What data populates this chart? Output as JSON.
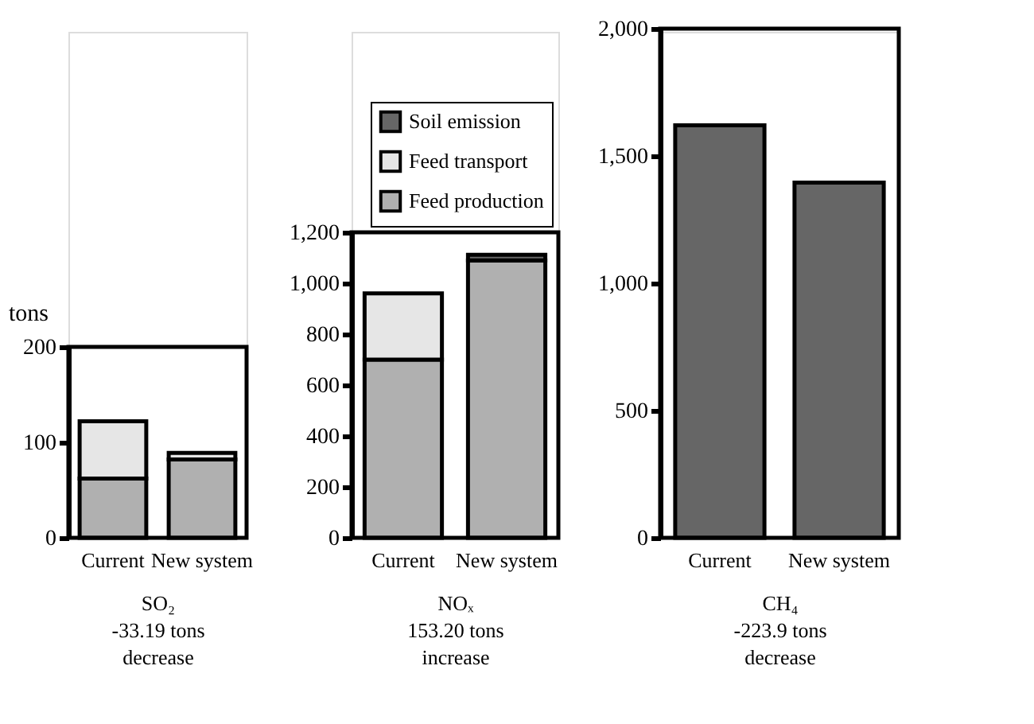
{
  "chart_data": [
    {
      "type": "bar",
      "stacked": true,
      "ylabel": "tons",
      "xlabel": "SO₂",
      "annotations": [
        "-33.19 tons",
        "decrease"
      ],
      "categories": [
        "Current",
        "New system"
      ],
      "ylim": [
        0,
        200
      ],
      "yticks": [
        0,
        100,
        200
      ],
      "legend": false,
      "grid": false,
      "series": [
        {
          "color": "#b0b0b0",
          "values": [
            62,
            82
          ]
        },
        {
          "color": "#e6e6e6",
          "values": [
            60,
            7
          ]
        }
      ]
    },
    {
      "type": "bar",
      "stacked": true,
      "xlabel": "NOₓ",
      "annotations": [
        "153.20 tons",
        "increase"
      ],
      "categories": [
        "Current",
        "New system"
      ],
      "ylim": [
        0,
        1200
      ],
      "yticks": [
        0,
        200,
        400,
        600,
        800,
        {
          "value": 1000,
          "label": "1,000"
        },
        {
          "value": 1200,
          "label": "1,200"
        }
      ],
      "legend": "top",
      "grid": false,
      "series": [
        {
          "name": "Feed production",
          "color": "#b0b0b0",
          "values": [
            700,
            1090
          ]
        },
        {
          "name": "Feed transport",
          "color": "#e6e6e6",
          "values": [
            260,
            0
          ]
        },
        {
          "name": "Soil emission",
          "color": "#666666",
          "values": [
            null,
            22
          ]
        }
      ]
    },
    {
      "type": "bar",
      "xlabel": "CH₄",
      "annotations": [
        "-223.9 tons",
        "decrease"
      ],
      "categories": [
        "Current",
        "New system"
      ],
      "ylim": [
        0,
        2000
      ],
      "yticks": [
        0,
        500,
        {
          "value": 1000,
          "label": "1,000"
        },
        {
          "value": 1500,
          "label": "1,500"
        },
        {
          "value": 2000,
          "label": "2,000"
        }
      ],
      "legend": false,
      "grid": false,
      "values": [
        1620,
        1395
      ],
      "color": "#666666"
    }
  ]
}
